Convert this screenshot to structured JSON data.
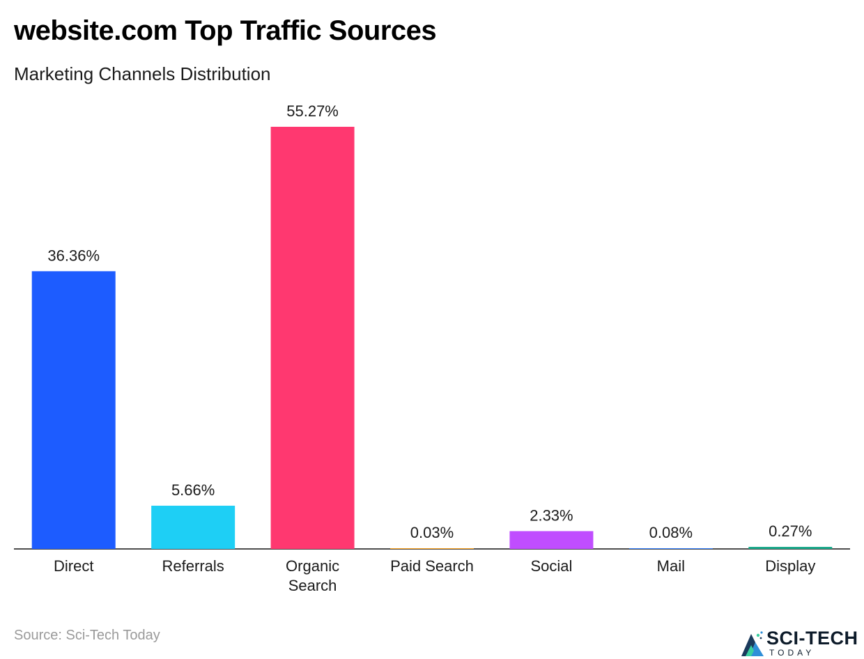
{
  "header": {
    "title": "website.com Top Traffic Sources",
    "subtitle": "Marketing Channels Distribution"
  },
  "footer": {
    "source": "Source: Sci-Tech Today",
    "logo_line1": "SCI-TECH",
    "logo_line2": "TODAY"
  },
  "chart_data": {
    "type": "bar",
    "title": "website.com Top Traffic Sources",
    "subtitle": "Marketing Channels Distribution",
    "xlabel": "",
    "ylabel": "",
    "categories": [
      [
        "Direct"
      ],
      [
        "Referrals"
      ],
      [
        "Organic",
        "Search"
      ],
      [
        "Paid Search"
      ],
      [
        "Social"
      ],
      [
        "Mail"
      ],
      [
        "Display"
      ]
    ],
    "values": [
      36.36,
      5.66,
      55.27,
      0.03,
      2.33,
      0.08,
      0.27
    ],
    "value_labels": [
      "36.36%",
      "5.66%",
      "55.27%",
      "0.03%",
      "2.33%",
      "0.08%",
      "0.27%"
    ],
    "colors": [
      "#1d5cff",
      "#1ecff5",
      "#ff3870",
      "#ffa31a",
      "#c04dff",
      "#2d7bff",
      "#1aa88a"
    ],
    "ylim": [
      0,
      55.27
    ],
    "grid": false,
    "legend": "none"
  }
}
